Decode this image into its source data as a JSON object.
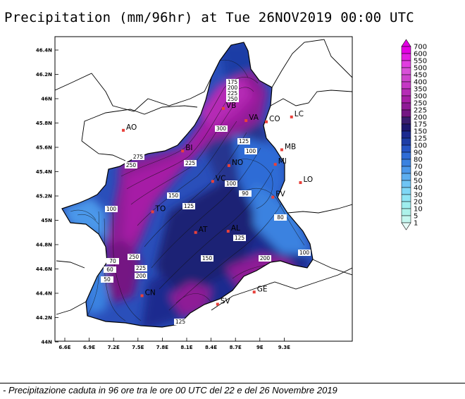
{
  "title": "Precipitation (mm/96hr) at Tue 26NOV2019 00:00 UTC",
  "caption": "- Precipitazione caduta in 96 ore tra le ore 00 UTC del 22 e del 26 Novembre 2019",
  "axes": {
    "x_ticks": [
      "6.6E",
      "6.9E",
      "7.2E",
      "7.5E",
      "7.8E",
      "8.1E",
      "8.4E",
      "8.7E",
      "9E",
      "9.3E"
    ],
    "y_ticks": [
      "46.4N",
      "46.2N",
      "46N",
      "45.8N",
      "45.6N",
      "45.4N",
      "45.2N",
      "45N",
      "44.8N",
      "44.6N",
      "44.4N",
      "44.2N",
      "44N"
    ]
  },
  "cities": [
    {
      "name": "AO",
      "lon": 7.32,
      "lat": 45.74
    },
    {
      "name": "BI",
      "lon": 8.05,
      "lat": 45.57
    },
    {
      "name": "VB",
      "lon": 8.55,
      "lat": 45.92
    },
    {
      "name": "VA",
      "lon": 8.83,
      "lat": 45.82
    },
    {
      "name": "CO",
      "lon": 9.08,
      "lat": 45.81
    },
    {
      "name": "LC",
      "lon": 9.39,
      "lat": 45.85
    },
    {
      "name": "NO",
      "lon": 8.62,
      "lat": 45.45
    },
    {
      "name": "MB",
      "lon": 9.27,
      "lat": 45.58
    },
    {
      "name": "MI",
      "lon": 9.19,
      "lat": 45.46
    },
    {
      "name": "LO",
      "lon": 9.5,
      "lat": 45.31
    },
    {
      "name": "VC",
      "lon": 8.42,
      "lat": 45.32
    },
    {
      "name": "PV",
      "lon": 9.16,
      "lat": 45.19
    },
    {
      "name": "TO",
      "lon": 7.68,
      "lat": 45.07
    },
    {
      "name": "AT",
      "lon": 8.21,
      "lat": 44.9
    },
    {
      "name": "AL",
      "lon": 8.61,
      "lat": 44.91
    },
    {
      "name": "CN",
      "lon": 7.55,
      "lat": 44.38
    },
    {
      "name": "GE",
      "lon": 8.93,
      "lat": 44.41
    },
    {
      "name": "SV",
      "lon": 8.48,
      "lat": 44.31
    }
  ],
  "contour_labels": [
    "175",
    "200",
    "225",
    "250",
    "300",
    "125",
    "100",
    "225",
    "275",
    "250",
    "150",
    "125",
    "100",
    "125",
    "100",
    "150",
    "250",
    "225",
    "200",
    "200",
    "100",
    "125",
    "90",
    "80",
    "70",
    "60",
    "50"
  ],
  "legend": {
    "levels": [
      "700",
      "600",
      "550",
      "500",
      "450",
      "400",
      "350",
      "300",
      "250",
      "225",
      "200",
      "175",
      "150",
      "125",
      "100",
      "90",
      "80",
      "70",
      "60",
      "50",
      "40",
      "30",
      "20",
      "10",
      "5",
      "1"
    ],
    "colors": [
      "#e400e4",
      "#e21ee2",
      "#e03de0",
      "#d850d8",
      "#cc44cc",
      "#c438c4",
      "#b52cb5",
      "#a61fa6",
      "#8e1a96",
      "#741683",
      "#3a1d6e",
      "#1e186e",
      "#1c2a8f",
      "#1e3ea6",
      "#2655c4",
      "#2f6cd6",
      "#3a82e0",
      "#4b98ea",
      "#5daef0",
      "#6ec4f4",
      "#7fd7f6",
      "#8fe5f4",
      "#9eedee",
      "#adf2ea",
      "#c4f7ef",
      "#e6fbf7"
    ]
  },
  "colors": {
    "low": "#6ec4f4",
    "mid": "#1c2a8f",
    "high": "#a61fa6",
    "city_marker": "#e8413b"
  }
}
